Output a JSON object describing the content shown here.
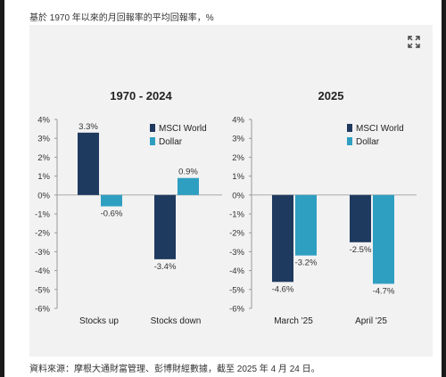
{
  "caption": "基於 1970 年以來的月回報率的平均回報率，%",
  "source": "資料來源：摩根大通財富管理、彭博財經數據，截至 2025 年 4 月 24 日。",
  "icons": {
    "expand": "expand-icon"
  },
  "colors": {
    "msci": "#1f3a5f",
    "dollar": "#2e9fc1",
    "panel": "#f2f2f2"
  },
  "chart_data": [
    {
      "type": "bar",
      "title": "1970 - 2024",
      "categories": [
        "Stocks up",
        "Stocks down"
      ],
      "series": [
        {
          "name": "MSCI World",
          "values": [
            3.3,
            -3.4
          ]
        },
        {
          "name": "Dollar",
          "values": [
            -0.6,
            0.9
          ]
        }
      ],
      "data_labels": [
        [
          "3.3%",
          "-3.4%"
        ],
        [
          "-0.6%",
          "0.9%"
        ]
      ],
      "ylim": [
        -6,
        4
      ],
      "yticks": [
        "4%",
        "3%",
        "2%",
        "1%",
        "0%",
        "-1%",
        "-2%",
        "-3%",
        "-4%",
        "-5%",
        "-6%"
      ],
      "legend": "top-right",
      "grid": false
    },
    {
      "type": "bar",
      "title": "2025",
      "categories": [
        "March '25",
        "April '25"
      ],
      "series": [
        {
          "name": "MSCI World",
          "values": [
            -4.6,
            -2.5
          ]
        },
        {
          "name": "Dollar",
          "values": [
            -3.2,
            -4.7
          ]
        }
      ],
      "data_labels": [
        [
          "-4.6%",
          "-2.5%"
        ],
        [
          "-3.2%",
          "-4.7%"
        ]
      ],
      "ylim": [
        -6,
        4
      ],
      "yticks": [
        "4%",
        "3%",
        "2%",
        "1%",
        "0%",
        "-1%",
        "-2%",
        "-3%",
        "-4%",
        "-5%",
        "-6%"
      ],
      "legend": "top-right",
      "grid": false
    }
  ]
}
